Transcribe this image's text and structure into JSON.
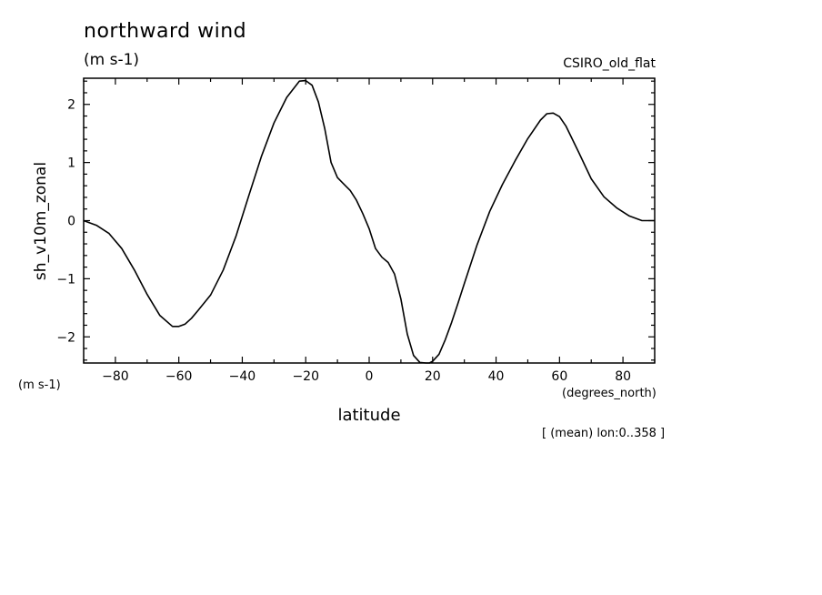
{
  "chart_data": {
    "type": "line",
    "title": "northward wind",
    "units": "(m s-1)",
    "model": "CSIRO_old_flat",
    "ylabel": "sh_v10m_zonal",
    "yunits": "(m s-1)",
    "xlabel": "latitude",
    "xunits": "(degrees_north)",
    "note": "[ (mean) lon:0..358 ]",
    "xlim": [
      -90,
      90
    ],
    "ylim": [
      -2.45,
      2.45
    ],
    "xticks": [
      -80,
      -60,
      -40,
      -20,
      0,
      20,
      40,
      60,
      80
    ],
    "xtick_labels": [
      "−80",
      "−60",
      "−40",
      "−20",
      "0",
      "20",
      "40",
      "60",
      "80"
    ],
    "yticks": [
      -2,
      -1,
      0,
      1,
      2
    ],
    "ytick_labels": [
      "−2",
      "−1",
      "0",
      "1",
      "2"
    ],
    "series": [
      {
        "x": [
          -90,
          -86,
          -82,
          -78,
          -74,
          -70,
          -66,
          -62,
          -60,
          -58,
          -56,
          -54,
          -50,
          -46,
          -42,
          -38,
          -34,
          -30,
          -26,
          -22,
          -20,
          -18,
          -16,
          -14,
          -12,
          -10,
          -8,
          -6,
          -4,
          -2,
          0,
          2,
          4,
          6,
          8,
          10,
          12,
          14,
          16,
          18,
          19,
          20,
          22,
          24,
          26,
          28,
          30,
          34,
          38,
          42,
          46,
          50,
          54,
          56,
          58,
          60,
          62,
          66,
          70,
          74,
          78,
          82,
          86,
          90
        ],
        "y": [
          0.0,
          -0.08,
          -0.22,
          -0.48,
          -0.85,
          -1.27,
          -1.63,
          -1.82,
          -1.82,
          -1.78,
          -1.68,
          -1.55,
          -1.28,
          -0.85,
          -0.27,
          0.42,
          1.1,
          1.68,
          2.12,
          2.4,
          2.41,
          2.33,
          2.04,
          1.58,
          1.0,
          0.74,
          0.63,
          0.52,
          0.35,
          0.12,
          -0.14,
          -0.48,
          -0.63,
          -0.72,
          -0.92,
          -1.35,
          -1.95,
          -2.32,
          -2.44,
          -2.45,
          -2.45,
          -2.42,
          -2.3,
          -2.05,
          -1.75,
          -1.42,
          -1.08,
          -0.42,
          0.16,
          0.62,
          1.03,
          1.41,
          1.73,
          1.84,
          1.85,
          1.79,
          1.63,
          1.18,
          0.72,
          0.41,
          0.22,
          0.08,
          0.0,
          0.0
        ]
      }
    ]
  }
}
